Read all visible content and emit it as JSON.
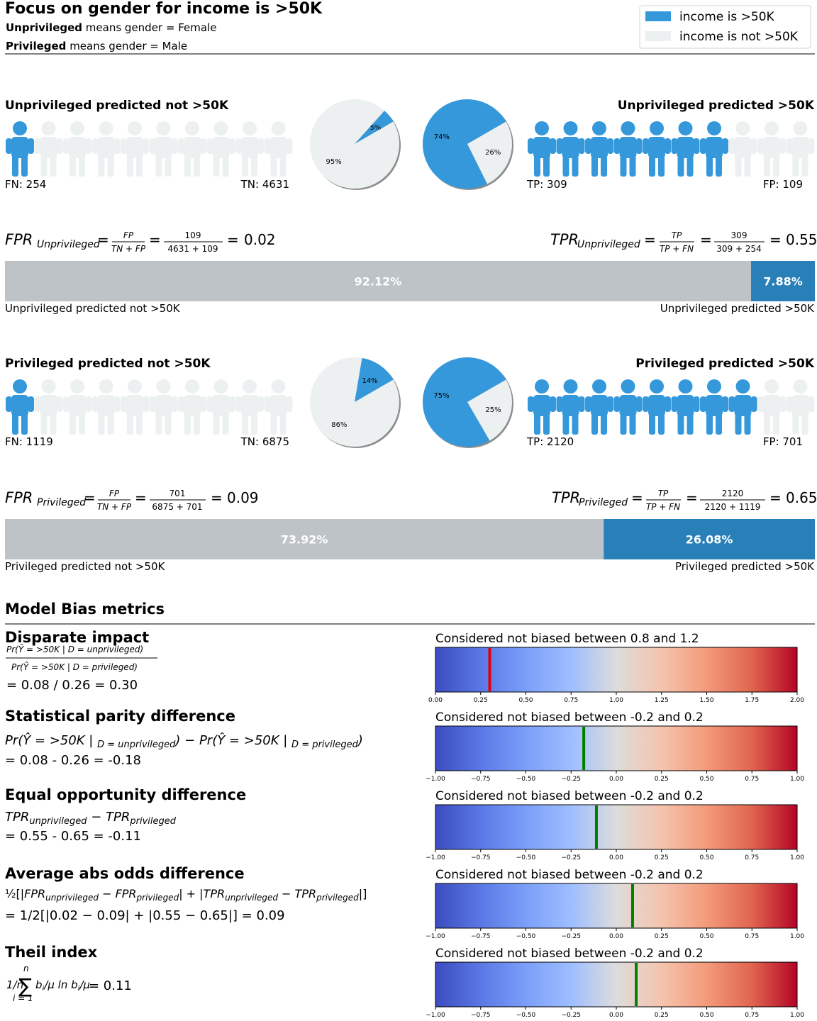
{
  "header": {
    "title": "Focus on gender for income is >50K",
    "unpriv_bold": "Unprivileged",
    "unpriv_rest": " means gender = Female",
    "priv_bold": "Privileged",
    "priv_rest": " means gender = Male"
  },
  "legend": {
    "items": [
      {
        "label": "income is >50K",
        "color": "#3498db"
      },
      {
        "label": "income is not >50K",
        "color": "#ecf0f1"
      }
    ]
  },
  "colors": {
    "positive": "#3498db",
    "negative": "#ecf0f1",
    "bar_neg": "#bdc3c7",
    "bar_pos": "#2980b9",
    "marker_out": "#e0000f",
    "marker_in": "#008000"
  },
  "groups": [
    {
      "neg_title": "Unprivileged predicted not >50K",
      "pos_title": "Unprivileged predicted >50K",
      "fn_label": "FN: 254",
      "tn_label": "TN: 4631",
      "tp_label": "TP: 309",
      "fp_label": "FP: 109",
      "neg_icons_blue": 1,
      "pos_icons_blue": 7,
      "pie_neg": {
        "type": "pie",
        "slices": [
          {
            "label": "5%",
            "value": 5,
            "class": "positive"
          },
          {
            "label": "95%",
            "value": 95,
            "class": "negative"
          }
        ]
      },
      "pie_pos": {
        "type": "pie",
        "slices": [
          {
            "label": "74%",
            "value": 74,
            "class": "positive"
          },
          {
            "label": "26%",
            "value": 26,
            "class": "negative"
          }
        ]
      },
      "fpr_name": "Unprivileged",
      "fpr_num": "109",
      "fpr_den": "4631 + 109",
      "fpr_val": "0.02",
      "tpr_name": "Unprivileged",
      "tpr_num": "309",
      "tpr_den": "309 + 254",
      "tpr_val": "0.55",
      "bar": {
        "neg_pct": 92.12,
        "pos_pct": 7.88,
        "neg_label": "92.12%",
        "pos_label": "7.88%"
      },
      "bar_left": "Unprivileged predicted not >50K",
      "bar_right": "Unprivileged predicted >50K"
    },
    {
      "neg_title": "Privileged predicted not >50K",
      "pos_title": "Privileged predicted >50K",
      "fn_label": "FN: 1119",
      "tn_label": "TN: 6875",
      "tp_label": "TP: 2120",
      "fp_label": "FP: 701",
      "neg_icons_blue": 1,
      "pos_icons_blue": 8,
      "pie_neg": {
        "type": "pie",
        "slices": [
          {
            "label": "14%",
            "value": 14,
            "class": "positive"
          },
          {
            "label": "86%",
            "value": 86,
            "class": "negative"
          }
        ]
      },
      "pie_pos": {
        "type": "pie",
        "slices": [
          {
            "label": "75%",
            "value": 75,
            "class": "positive"
          },
          {
            "label": "25%",
            "value": 25,
            "class": "negative"
          }
        ]
      },
      "fpr_name": "Privileged",
      "fpr_num": "701",
      "fpr_den": "6875 + 701",
      "fpr_val": "0.09",
      "tpr_name": "Privileged",
      "tpr_num": "2120",
      "tpr_den": "2120 + 1119",
      "tpr_val": "0.65",
      "bar": {
        "neg_pct": 73.92,
        "pos_pct": 26.08,
        "neg_label": "73.92%",
        "pos_label": "26.08%"
      },
      "bar_left": "Privileged predicted not >50K",
      "bar_right": "Privileged predicted >50K"
    }
  ],
  "metrics_title": "Model Bias metrics",
  "metrics": [
    {
      "name": "Disparate impact",
      "result": "= 0.08 / 0.26 = 0.30",
      "caption": "Considered not biased between 0.8 and 1.2",
      "value": 0.3,
      "in_range": false,
      "xlim": [
        0,
        2
      ],
      "ticks": [
        "0.00",
        "0.25",
        "0.50",
        "0.75",
        "1.00",
        "1.25",
        "1.50",
        "1.75",
        "2.00"
      ]
    },
    {
      "name": "Statistical parity difference",
      "result": "= 0.08 - 0.26 = -0.18",
      "caption": "Considered not biased between -0.2 and 0.2",
      "value": -0.18,
      "in_range": true,
      "xlim": [
        -1,
        1
      ],
      "ticks": [
        "−1.00",
        "−0.75",
        "−0.50",
        "−0.25",
        "0.00",
        "0.25",
        "0.50",
        "0.75",
        "1.00"
      ]
    },
    {
      "name": "Equal opportunity difference",
      "result": " = 0.55 - 0.65 = -0.11",
      "caption": "Considered not biased between -0.2 and 0.2",
      "value": -0.11,
      "in_range": true,
      "xlim": [
        -1,
        1
      ],
      "ticks": [
        "−1.00",
        "−0.75",
        "−0.50",
        "−0.25",
        "0.00",
        "0.25",
        "0.50",
        "0.75",
        "1.00"
      ]
    },
    {
      "name": "Average abs odds difference",
      "result": "= 1/2[|0.02 − 0.09| + |0.55 − 0.65|] = 0.09",
      "caption": "Considered not biased between -0.2 and 0.2",
      "value": 0.09,
      "in_range": true,
      "xlim": [
        -1,
        1
      ],
      "ticks": [
        "−1.00",
        "−0.75",
        "−0.50",
        "−0.25",
        "0.00",
        "0.25",
        "0.50",
        "0.75",
        "1.00"
      ]
    },
    {
      "name": "Theil index",
      "result": "= 0.11",
      "caption": "Considered not biased between -0.2 and 0.2",
      "value": 0.11,
      "in_range": true,
      "xlim": [
        -1,
        1
      ],
      "ticks": [
        "−1.00",
        "−0.75",
        "−0.50",
        "−0.25",
        "0.00",
        "0.25",
        "0.50",
        "0.75",
        "1.00"
      ]
    }
  ],
  "chart_data": [
    {
      "type": "pie",
      "slices": [
        {
          "label": "5%",
          "value": 5
        },
        {
          "label": "95%",
          "value": 95
        }
      ]
    },
    {
      "type": "pie",
      "slices": [
        {
          "label": "74%",
          "value": 74
        },
        {
          "label": "26%",
          "value": 26
        }
      ]
    },
    {
      "type": "bar",
      "categories": [
        "Unprivileged predicted not >50K",
        "Unprivileged predicted >50K"
      ],
      "values": [
        92.12,
        7.88
      ]
    },
    {
      "type": "pie",
      "slices": [
        {
          "label": "14%",
          "value": 14
        },
        {
          "label": "86%",
          "value": 86
        }
      ]
    },
    {
      "type": "pie",
      "slices": [
        {
          "label": "75%",
          "value": 75
        },
        {
          "label": "25%",
          "value": 25
        }
      ]
    },
    {
      "type": "bar",
      "categories": [
        "Privileged predicted not >50K",
        "Privileged predicted >50K"
      ],
      "values": [
        73.92,
        26.08
      ]
    }
  ]
}
